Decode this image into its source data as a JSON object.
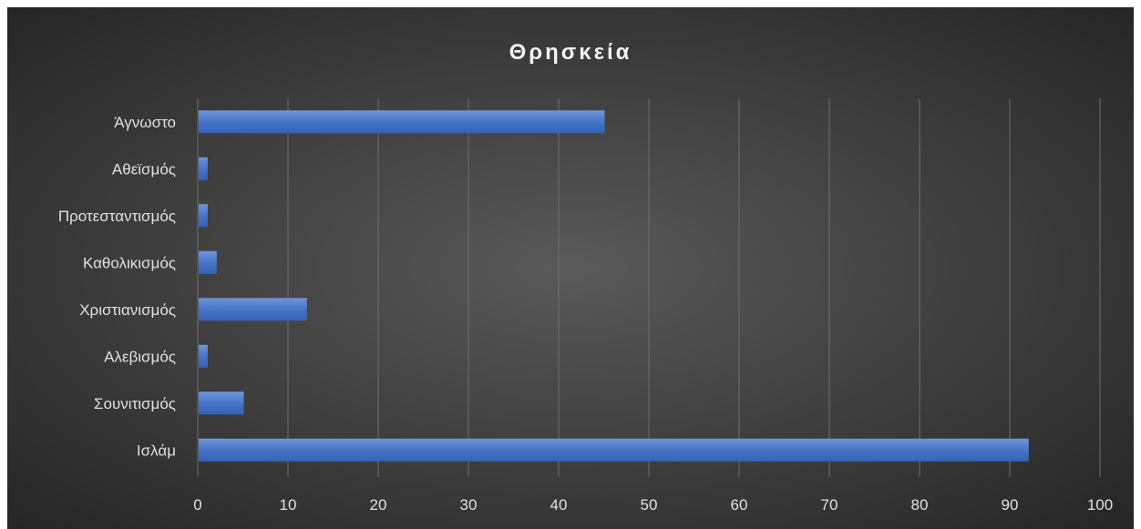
{
  "chart_data": {
    "type": "bar",
    "orientation": "horizontal",
    "title": "Θρησκεία",
    "xlabel": "",
    "ylabel": "",
    "categories": [
      "Ισλάμ",
      "Σουνιτισμός",
      "Αλεβισμός",
      "Χριστιανισμός",
      "Καθολικισμός",
      "Προτεσταντισμός",
      "Αθεϊσμός",
      "Άγνωστο"
    ],
    "values": [
      92,
      5,
      1,
      12,
      2,
      1,
      1,
      45
    ],
    "xlim": [
      0,
      100
    ],
    "xticks": [
      "0",
      "10",
      "20",
      "30",
      "40",
      "50",
      "60",
      "70",
      "80",
      "90",
      "100"
    ],
    "grid": true,
    "legend": "none",
    "colors": {
      "background_center": "#595959",
      "background_edge": "#262626",
      "bar": "#4472c4",
      "bar_highlight": "#6f95dd",
      "gridline": "#6e6e6e",
      "text": "#e0e0e0"
    }
  }
}
